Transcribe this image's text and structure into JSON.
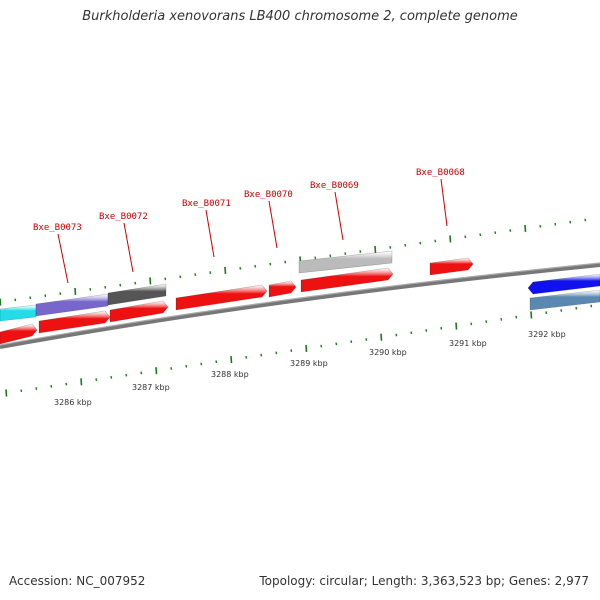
{
  "title": "Burkholderia xenovorans LB400 chromosome 2, complete genome",
  "footer": {
    "accession": "Accession: NC_007952",
    "summary": "Topology: circular; Length: 3,363,523 bp; Genes: 2,977"
  },
  "colors": {
    "backbone": "#888888",
    "tick": "#1a7a1a",
    "label": "#cc0000",
    "forward_gene": "#ee1111",
    "cyan_feature": "#22dde8",
    "purple_feature": "#7766cc",
    "dark_gray_feature": "#555555",
    "light_gray_feature": "#bbbbbb",
    "blue_feature": "#1111ee",
    "steel_feature": "#5b88b0"
  },
  "scale_labels": [
    "3286 kbp",
    "3287 kbp",
    "3288 kbp",
    "3289 kbp",
    "3290 kbp",
    "3291 kbp",
    "3292 kbp"
  ],
  "gene_labels": [
    "Bxe_B0073",
    "Bxe_B0072",
    "Bxe_B0071",
    "Bxe_B0070",
    "Bxe_B0069",
    "Bxe_B0068"
  ]
}
